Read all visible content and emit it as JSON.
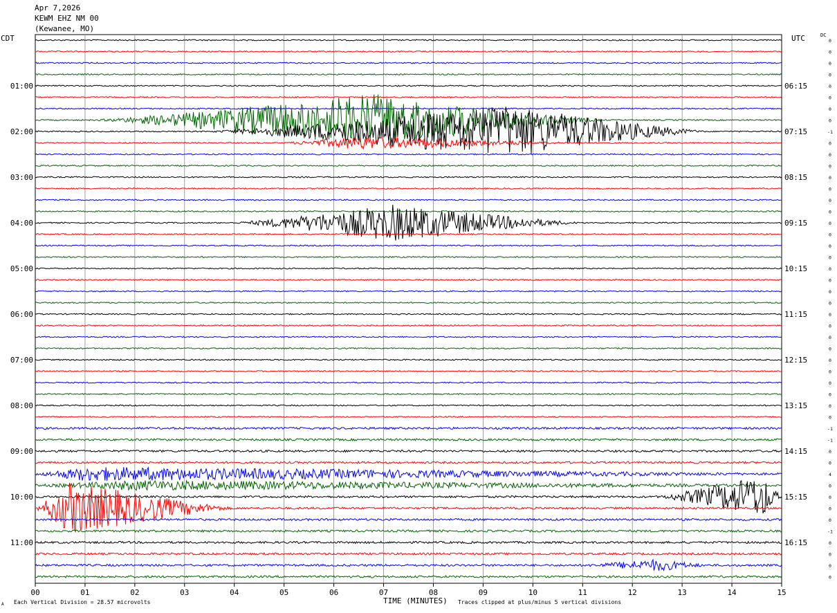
{
  "header": {
    "date": "Apr 7,2026",
    "station": "KEWM EHZ NM 00",
    "location": "(Kewanee, MO)"
  },
  "left_tz": "CDT",
  "right_tz": "UTC",
  "dc_label": "DC",
  "footer": {
    "scale": "Each Vertical Division =   28.57 microvolts",
    "clip": "Traces clipped at plus/minus 5 vertical divisions",
    "corner": "A"
  },
  "colors": [
    "#000000",
    "#ff0000",
    "#0000ff",
    "#006400"
  ],
  "chart_data": {
    "type": "line",
    "title": "",
    "xlabel": "TIME (MINUTES)",
    "ylabel": "",
    "x_ticks": [
      "00",
      "01",
      "02",
      "03",
      "04",
      "05",
      "06",
      "07",
      "08",
      "09",
      "10",
      "11",
      "12",
      "13",
      "14",
      "15"
    ],
    "xlim": [
      0,
      15
    ],
    "rows_per_hour": 4,
    "rows": 48,
    "left_hour_labels": [
      "01:00",
      "02:00",
      "03:00",
      "04:00",
      "05:00",
      "06:00",
      "07:00",
      "08:00",
      "09:00",
      "10:00",
      "11:00"
    ],
    "right_hour_labels": [
      "06:15",
      "07:15",
      "08:15",
      "09:15",
      "10:15",
      "11:15",
      "12:15",
      "13:15",
      "14:15",
      "15:15",
      "16:15"
    ],
    "dc_offsets": [
      "0",
      "0",
      "0",
      "0",
      "0",
      "0",
      "0",
      "0",
      "-1",
      "0",
      "0",
      "0",
      "0",
      "0",
      "0",
      "0",
      "0",
      "0",
      "0",
      "0",
      "0",
      "0",
      "0",
      "0",
      "0",
      "0",
      "0",
      "0",
      "0",
      "0",
      "0",
      "0",
      "0",
      "0",
      "-1",
      "-1",
      "0",
      "0",
      "4",
      "0",
      "0",
      "0",
      "0",
      "-1",
      "0",
      "0",
      "0",
      "0"
    ],
    "events": [
      {
        "row": 7,
        "start": 1.2,
        "end": 11.5,
        "peak": 6.8,
        "amp": 5
      },
      {
        "row": 8,
        "start": 3.5,
        "end": 13.5,
        "peak": 9.5,
        "amp": 5
      },
      {
        "row": 9,
        "start": 5.0,
        "end": 11.0,
        "peak": 6.5,
        "amp": 1.2
      },
      {
        "row": 16,
        "start": 4.0,
        "end": 11.0,
        "peak": 7.2,
        "amp": 3.5
      },
      {
        "row": 38,
        "start": 0.0,
        "end": 15.0,
        "peak": 1.0,
        "amp": 1.2
      },
      {
        "row": 39,
        "start": 0.0,
        "end": 15.0,
        "peak": 2.0,
        "amp": 0.8
      },
      {
        "row": 40,
        "start": 12.5,
        "end": 15.0,
        "peak": 14.6,
        "amp": 4
      },
      {
        "row": 41,
        "start": 0.0,
        "end": 4.0,
        "peak": 0.7,
        "amp": 5
      },
      {
        "row": 46,
        "start": 11.0,
        "end": 13.5,
        "peak": 12.5,
        "amp": 1
      }
    ]
  }
}
